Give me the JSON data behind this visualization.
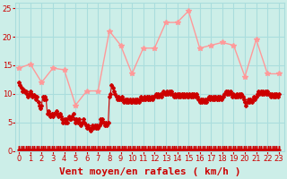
{
  "background_color": "#cceee8",
  "grid_color": "#aadddd",
  "xlabel": "Vent moyen/en rafales ( km/h )",
  "xlabel_color": "#cc0000",
  "ylabel_color": "#cc0000",
  "yticks": [
    0,
    5,
    10,
    15,
    20,
    25
  ],
  "xticks": [
    0,
    1,
    2,
    3,
    4,
    5,
    6,
    7,
    8,
    9,
    10,
    11,
    12,
    13,
    14,
    15,
    16,
    17,
    18,
    19,
    20,
    21,
    22,
    23
  ],
  "xlim": [
    -0.3,
    23.5
  ],
  "ylim": [
    0,
    26
  ],
  "line1_color": "#ff9999",
  "line2_color": "#cc0000",
  "line1_x": [
    0,
    1,
    2,
    3,
    4,
    5,
    6,
    7,
    8,
    9,
    10,
    11,
    12,
    13,
    14,
    15,
    16,
    17,
    18,
    19,
    20,
    21,
    22,
    23
  ],
  "line1_values": [
    14.5,
    15.2,
    12.0,
    14.5,
    14.2,
    8.0,
    10.5,
    10.5,
    21.0,
    18.5,
    13.5,
    18.0,
    18.0,
    22.5,
    22.5,
    24.5,
    18.0,
    18.5,
    19.0,
    18.5,
    13.0,
    19.5,
    13.5,
    13.5
  ],
  "line2_x": [
    0.0,
    0.1,
    0.2,
    0.3,
    0.4,
    0.5,
    0.6,
    0.7,
    0.8,
    0.9,
    1.0,
    1.1,
    1.2,
    1.3,
    1.4,
    1.5,
    1.6,
    1.7,
    1.8,
    1.9,
    2.0,
    2.1,
    2.2,
    2.3,
    2.4,
    2.5,
    2.6,
    2.7,
    2.8,
    2.9,
    3.0,
    3.1,
    3.2,
    3.3,
    3.4,
    3.5,
    3.6,
    3.7,
    3.8,
    3.9,
    4.0,
    4.1,
    4.2,
    4.3,
    4.4,
    4.5,
    4.6,
    4.7,
    4.8,
    4.9,
    5.0,
    5.1,
    5.2,
    5.3,
    5.4,
    5.5,
    5.6,
    5.7,
    5.8,
    5.9,
    6.0,
    6.1,
    6.2,
    6.3,
    6.4,
    6.5,
    6.6,
    6.7,
    6.8,
    6.9,
    7.0,
    7.1,
    7.2,
    7.3,
    7.4,
    7.5,
    7.6,
    7.7,
    7.8,
    7.9,
    8.0,
    8.1,
    8.2,
    8.3,
    8.4,
    8.5,
    8.6,
    8.7,
    8.8,
    8.9,
    9.0,
    9.1,
    9.2,
    9.3,
    9.4,
    9.5,
    9.6,
    9.7,
    9.8,
    9.9,
    10.0,
    10.1,
    10.2,
    10.3,
    10.4,
    10.5,
    10.6,
    10.7,
    10.8,
    10.9,
    11.0,
    11.1,
    11.2,
    11.3,
    11.4,
    11.5,
    11.6,
    11.7,
    11.8,
    11.9,
    12.0,
    12.1,
    12.2,
    12.3,
    12.4,
    12.5,
    12.6,
    12.7,
    12.8,
    12.9,
    13.0,
    13.1,
    13.2,
    13.3,
    13.4,
    13.5,
    13.6,
    13.7,
    13.8,
    13.9,
    14.0,
    14.1,
    14.2,
    14.3,
    14.4,
    14.5,
    14.6,
    14.7,
    14.8,
    14.9,
    15.0,
    15.1,
    15.2,
    15.3,
    15.4,
    15.5,
    15.6,
    15.7,
    15.8,
    15.9,
    16.0,
    16.1,
    16.2,
    16.3,
    16.4,
    16.5,
    16.6,
    16.7,
    16.8,
    16.9,
    17.0,
    17.1,
    17.2,
    17.3,
    17.4,
    17.5,
    17.6,
    17.7,
    17.8,
    17.9,
    18.0,
    18.1,
    18.2,
    18.3,
    18.4,
    18.5,
    18.6,
    18.7,
    18.8,
    18.9,
    19.0,
    19.1,
    19.2,
    19.3,
    19.4,
    19.5,
    19.6,
    19.7,
    19.8,
    19.9,
    20.0,
    20.1,
    20.2,
    20.3,
    20.4,
    20.5,
    20.6,
    20.7,
    20.8,
    20.9,
    21.0,
    21.1,
    21.2,
    21.3,
    21.4,
    21.5,
    21.6,
    21.7,
    21.8,
    21.9,
    22.0,
    22.1,
    22.2,
    22.3,
    22.4,
    22.5,
    22.6,
    22.7,
    22.8,
    22.9,
    23.0
  ],
  "line2_values": [
    12.0,
    11.5,
    11.0,
    10.5,
    10.8,
    10.2,
    10.5,
    10.0,
    9.5,
    10.0,
    10.5,
    10.0,
    9.5,
    9.8,
    9.5,
    9.0,
    9.5,
    8.5,
    8.0,
    7.5,
    8.0,
    9.5,
    9.0,
    9.5,
    9.0,
    6.5,
    7.0,
    6.5,
    6.0,
    6.5,
    6.0,
    6.5,
    6.5,
    7.0,
    6.5,
    6.0,
    6.5,
    6.0,
    5.5,
    5.0,
    5.5,
    5.0,
    5.5,
    5.0,
    6.0,
    5.5,
    5.5,
    6.0,
    6.5,
    5.5,
    5.0,
    5.5,
    5.0,
    5.5,
    5.0,
    4.5,
    5.0,
    5.5,
    5.0,
    4.5,
    4.0,
    4.5,
    4.0,
    3.5,
    4.0,
    4.5,
    4.0,
    4.5,
    4.0,
    4.5,
    4.0,
    4.5,
    5.5,
    5.0,
    5.5,
    5.0,
    4.5,
    5.0,
    4.5,
    5.0,
    9.5,
    10.0,
    11.5,
    11.0,
    10.5,
    10.0,
    9.5,
    9.0,
    9.5,
    9.0,
    9.0,
    9.5,
    9.0,
    8.5,
    9.0,
    8.5,
    9.0,
    8.5,
    9.0,
    8.5,
    8.5,
    9.0,
    8.5,
    9.0,
    8.5,
    9.0,
    8.5,
    9.0,
    9.5,
    9.0,
    9.0,
    9.5,
    9.0,
    9.5,
    9.0,
    9.5,
    9.0,
    9.5,
    9.0,
    9.5,
    9.5,
    10.0,
    9.5,
    10.0,
    9.5,
    10.0,
    9.5,
    10.0,
    10.5,
    10.0,
    10.0,
    10.5,
    10.0,
    10.5,
    10.0,
    10.5,
    10.0,
    9.5,
    10.0,
    9.5,
    10.0,
    9.5,
    10.0,
    9.5,
    10.0,
    9.5,
    10.0,
    9.5,
    10.0,
    9.5,
    9.5,
    10.0,
    9.5,
    10.0,
    9.5,
    10.0,
    9.5,
    10.0,
    9.5,
    9.0,
    8.5,
    9.0,
    8.5,
    9.0,
    8.5,
    9.0,
    8.5,
    9.0,
    9.5,
    9.0,
    9.5,
    9.0,
    9.5,
    9.0,
    9.5,
    9.0,
    9.5,
    9.0,
    9.5,
    9.0,
    9.5,
    9.5,
    10.0,
    10.5,
    10.0,
    10.5,
    10.0,
    10.5,
    10.0,
    9.5,
    10.0,
    9.5,
    9.5,
    10.0,
    9.5,
    10.0,
    9.5,
    10.0,
    9.5,
    9.0,
    8.5,
    8.0,
    8.5,
    9.0,
    8.5,
    9.0,
    8.5,
    9.0,
    9.5,
    9.0,
    9.5,
    10.0,
    10.5,
    10.0,
    10.5,
    10.0,
    10.5,
    10.0,
    10.5,
    10.0,
    10.5,
    10.0,
    10.0,
    9.5,
    10.0,
    9.5,
    10.0,
    9.5,
    10.0,
    9.5,
    10.0
  ],
  "line1_marker": "*",
  "line1_markersize": 4,
  "line2_markersize": 2,
  "bottom_y": 0.4,
  "tick_fontsize": 6,
  "xlabel_fontsize": 8
}
